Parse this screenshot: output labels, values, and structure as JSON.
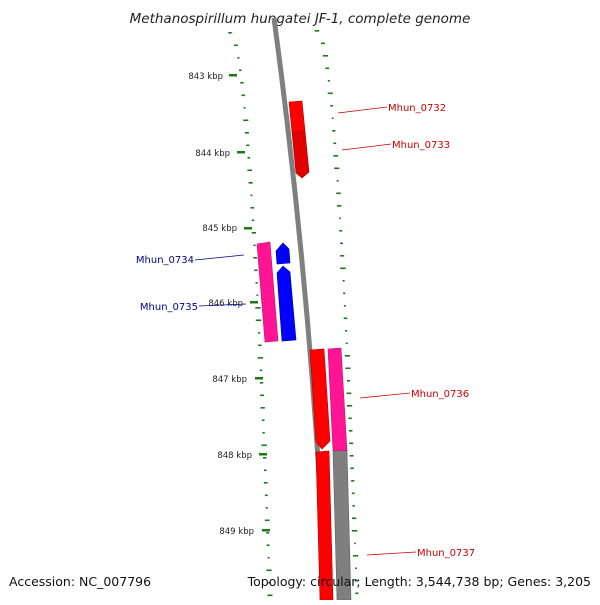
{
  "title": "Methanospirillum hungatei JF-1, complete genome",
  "footer": {
    "accession": "Accession: NC_007796",
    "summary": "Topology: circular; Length: 3,544,738 bp; Genes: 3,205"
  },
  "colors": {
    "backbone": "#7f7f7f",
    "forward_gene": "#ff0000",
    "reverse_gene": "#0000ff",
    "cds_feature": "#ff1493",
    "cds_feature_alt": "#7f7f7f",
    "gc_dots": "#1a7a1a",
    "label_forward": "#cc0000",
    "label_reverse": "#00008b"
  },
  "scale": {
    "unit": "kbp",
    "ticks": [
      "843 kbp",
      "844 kbp",
      "845 kbp",
      "846 kbp",
      "847 kbp",
      "848 kbp",
      "849 kbp"
    ]
  },
  "genes": [
    {
      "name": "Mhun_0732",
      "strand": "forward"
    },
    {
      "name": "Mhun_0733",
      "strand": "forward"
    },
    {
      "name": "Mhun_0734",
      "strand": "reverse"
    },
    {
      "name": "Mhun_0735",
      "strand": "reverse"
    },
    {
      "name": "Mhun_0736",
      "strand": "forward"
    },
    {
      "name": "Mhun_0737",
      "strand": "forward"
    }
  ]
}
